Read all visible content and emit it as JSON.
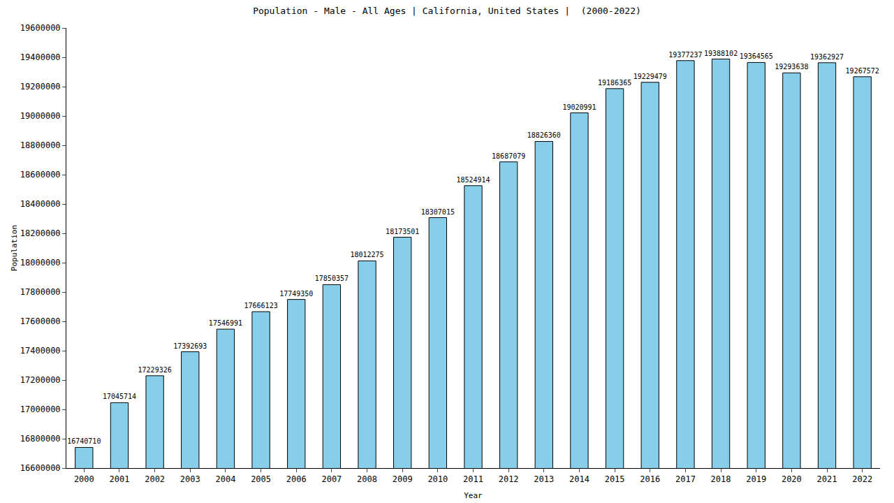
{
  "chart_data": {
    "type": "bar",
    "title": "Population - Male - All Ages | California, United States |  (2000-2022)",
    "x_label": "Year",
    "y_label": "Population",
    "categories": [
      "2000",
      "2001",
      "2002",
      "2003",
      "2004",
      "2005",
      "2006",
      "2007",
      "2008",
      "2009",
      "2010",
      "2011",
      "2012",
      "2013",
      "2014",
      "2015",
      "2016",
      "2017",
      "2018",
      "2019",
      "2020",
      "2021",
      "2022"
    ],
    "values": [
      16740710,
      17045714,
      17229326,
      17392693,
      17546991,
      17666123,
      17749350,
      17850357,
      18012275,
      18173501,
      18307015,
      18524914,
      18687079,
      18826360,
      19020991,
      19186365,
      19229479,
      19377237,
      19388102,
      19364565,
      19293638,
      19362927,
      19267572
    ],
    "color": "#87ceeb",
    "ylim": [
      16600000,
      19600000
    ],
    "yticks": [
      16600000,
      16800000,
      17000000,
      17200000,
      17400000,
      17600000,
      17800000,
      18000000,
      18200000,
      18400000,
      18600000,
      18800000,
      19000000,
      19200000,
      19400000,
      19600000
    ],
    "grid": false,
    "data_labels": true
  }
}
